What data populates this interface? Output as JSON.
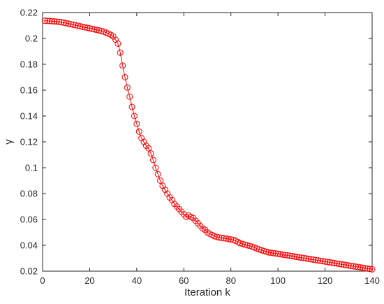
{
  "chart_data": {
    "type": "line",
    "title": "",
    "xlabel": "Iteration k",
    "ylabel": "γ",
    "xlim": [
      0,
      140
    ],
    "ylim": [
      0.02,
      0.22
    ],
    "xticks": [
      0,
      20,
      40,
      60,
      80,
      100,
      120,
      140
    ],
    "yticks": [
      0.02,
      0.04,
      0.06,
      0.08,
      0.1,
      0.12,
      0.14,
      0.16,
      0.18,
      0.2,
      0.22
    ],
    "xtick_labels": [
      "0",
      "20",
      "40",
      "60",
      "80",
      "100",
      "120",
      "140"
    ],
    "ytick_labels": [
      "0.02",
      "0.04",
      "0.06",
      "0.08",
      "0.1",
      "0.12",
      "0.14",
      "0.16",
      "0.18",
      "0.2",
      "0.22"
    ],
    "grid": false,
    "box": true,
    "series": [
      {
        "color": "#ff0000",
        "marker": "circle-open",
        "line": "solid",
        "x": [
          1,
          2,
          3,
          4,
          5,
          6,
          7,
          8,
          9,
          10,
          11,
          12,
          13,
          14,
          15,
          16,
          17,
          18,
          19,
          20,
          21,
          22,
          23,
          24,
          25,
          26,
          27,
          28,
          29,
          30,
          31,
          32,
          33,
          34,
          35,
          36,
          37,
          38,
          39,
          40,
          41,
          42,
          43,
          44,
          45,
          46,
          47,
          48,
          49,
          50,
          51,
          52,
          53,
          54,
          55,
          56,
          57,
          58,
          59,
          60,
          61,
          62,
          63,
          64,
          65,
          66,
          67,
          68,
          69,
          70,
          71,
          72,
          73,
          74,
          75,
          76,
          77,
          78,
          79,
          80,
          81,
          82,
          83,
          84,
          85,
          86,
          87,
          88,
          89,
          90,
          91,
          92,
          93,
          94,
          95,
          96,
          97,
          98,
          99,
          100,
          101,
          102,
          103,
          104,
          105,
          106,
          107,
          108,
          109,
          110,
          111,
          112,
          113,
          114,
          115,
          116,
          117,
          118,
          119,
          120,
          121,
          122,
          123,
          124,
          125,
          126,
          127,
          128,
          129,
          130,
          131,
          132,
          133,
          134,
          135,
          136,
          137,
          138,
          139,
          140
        ],
        "y": [
          0.2137,
          0.2136,
          0.2135,
          0.2133,
          0.2132,
          0.213,
          0.2128,
          0.2125,
          0.2122,
          0.2118,
          0.2114,
          0.211,
          0.2106,
          0.2102,
          0.2098,
          0.2094,
          0.209,
          0.2086,
          0.2082,
          0.2078,
          0.2074,
          0.207,
          0.2066,
          0.2062,
          0.2057,
          0.2052,
          0.2045,
          0.2037,
          0.2028,
          0.2015,
          0.199,
          0.196,
          0.189,
          0.179,
          0.17,
          0.162,
          0.155,
          0.147,
          0.14,
          0.134,
          0.128,
          0.123,
          0.12,
          0.117,
          0.115,
          0.111,
          0.106,
          0.1,
          0.095,
          0.09,
          0.086,
          0.083,
          0.08,
          0.077,
          0.075,
          0.072,
          0.07,
          0.068,
          0.066,
          0.064,
          0.062,
          0.063,
          0.062,
          0.061,
          0.059,
          0.057,
          0.055,
          0.053,
          0.052,
          0.05,
          0.049,
          0.048,
          0.047,
          0.0465,
          0.046,
          0.0458,
          0.0455,
          0.0452,
          0.0448,
          0.0445,
          0.0442,
          0.0435,
          0.0425,
          0.0415,
          0.041,
          0.0405,
          0.04,
          0.0395,
          0.039,
          0.0382,
          0.0375,
          0.0368,
          0.0362,
          0.0356,
          0.035,
          0.0345,
          0.0342,
          0.034,
          0.0337,
          0.0334,
          0.0331,
          0.0328,
          0.0325,
          0.0322,
          0.0319,
          0.0316,
          0.0313,
          0.031,
          0.0307,
          0.0304,
          0.0301,
          0.0298,
          0.0295,
          0.0292,
          0.0289,
          0.0286,
          0.0283,
          0.028,
          0.0277,
          0.0274,
          0.0271,
          0.0268,
          0.0265,
          0.0262,
          0.0259,
          0.0256,
          0.0253,
          0.025,
          0.0247,
          0.0244,
          0.0241,
          0.0238,
          0.0235,
          0.0232,
          0.0229,
          0.0226,
          0.0223,
          0.022,
          0.0217,
          0.0214
        ]
      }
    ]
  }
}
